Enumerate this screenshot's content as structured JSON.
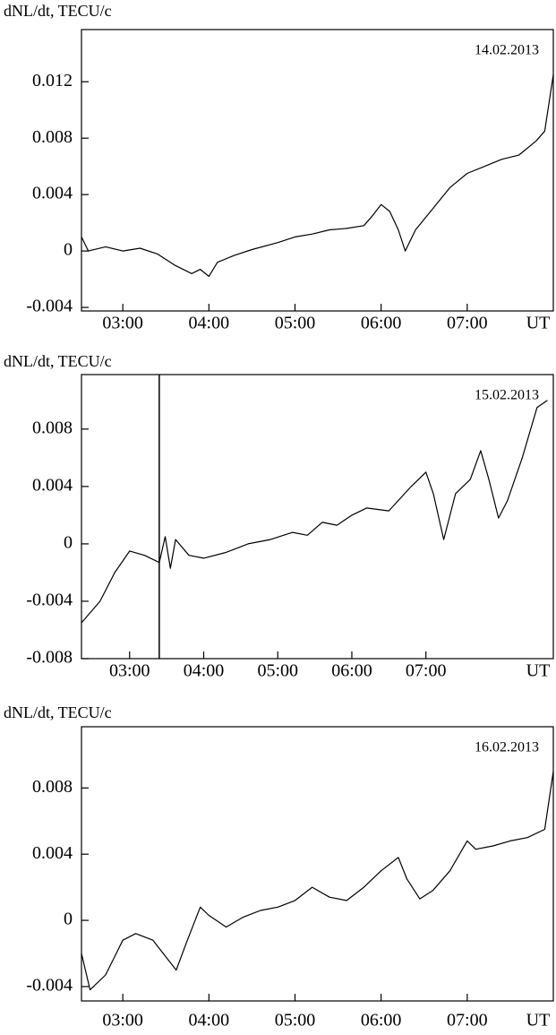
{
  "chart_data": [
    {
      "type": "line",
      "y_label": "dNL/dt, TECU/c",
      "x_label": "UT",
      "annotation": "14.02.2013",
      "color": "#000000",
      "xlim": [
        2.52,
        8.0
      ],
      "ylim": [
        -0.00425,
        0.0157
      ],
      "xticks": [
        {
          "value": 3,
          "label": "03:00"
        },
        {
          "value": 4,
          "label": "04:00"
        },
        {
          "value": 5,
          "label": "05:00"
        },
        {
          "value": 6,
          "label": "06:00"
        },
        {
          "value": 7,
          "label": "07:00"
        }
      ],
      "yticks": [
        -0.004,
        0,
        0.004,
        0.008,
        0.012
      ],
      "x": [
        2.52,
        2.6,
        2.8,
        3.0,
        3.2,
        3.4,
        3.6,
        3.8,
        3.9,
        4.0,
        4.1,
        4.3,
        4.5,
        4.8,
        5.0,
        5.2,
        5.4,
        5.6,
        5.8,
        5.9,
        6.0,
        6.1,
        6.2,
        6.28,
        6.4,
        6.6,
        6.8,
        7.0,
        7.2,
        7.4,
        7.6,
        7.8,
        7.9,
        8.0
      ],
      "values": [
        0.001,
        0.0,
        0.0003,
        0.0,
        0.0002,
        -0.0002,
        -0.001,
        -0.0016,
        -0.0013,
        -0.0018,
        -0.0008,
        -0.0003,
        0.0001,
        0.0006,
        0.001,
        0.0012,
        0.0015,
        0.0016,
        0.0018,
        0.0025,
        0.0033,
        0.0028,
        0.0015,
        0.0,
        0.0015,
        0.003,
        0.0045,
        0.0055,
        0.006,
        0.0065,
        0.0068,
        0.0078,
        0.0085,
        0.0125
      ]
    },
    {
      "type": "line",
      "y_label": "dNL/dt, TECU/c",
      "x_label": "UT",
      "annotation": "15.02.2013",
      "color": "#000000",
      "xlim": [
        2.35,
        8.72
      ],
      "ylim": [
        -0.008,
        0.0118
      ],
      "xticks": [
        {
          "value": 3,
          "label": "03:00"
        },
        {
          "value": 4,
          "label": "04:00"
        },
        {
          "value": 5,
          "label": "05:00"
        },
        {
          "value": 6,
          "label": "06:00"
        },
        {
          "value": 7,
          "label": "07:00"
        }
      ],
      "yticks": [
        -0.008,
        -0.004,
        0,
        0.004,
        0.008
      ],
      "vlines": [
        3.4
      ],
      "x": [
        2.35,
        2.6,
        2.8,
        3.0,
        3.2,
        3.4,
        3.48,
        3.55,
        3.62,
        3.8,
        4.0,
        4.3,
        4.6,
        4.9,
        5.2,
        5.4,
        5.6,
        5.8,
        6.0,
        6.2,
        6.5,
        6.8,
        7.0,
        7.1,
        7.24,
        7.4,
        7.6,
        7.74,
        7.85,
        7.98,
        8.1,
        8.3,
        8.5,
        8.64
      ],
      "values": [
        -0.0055,
        -0.004,
        -0.002,
        -0.0005,
        -0.0008,
        -0.0013,
        0.0005,
        -0.0017,
        0.0003,
        -0.0008,
        -0.001,
        -0.0006,
        0.0,
        0.0003,
        0.0008,
        0.0006,
        0.0015,
        0.0013,
        0.002,
        0.0025,
        0.0023,
        0.004,
        0.005,
        0.0035,
        0.0003,
        0.0035,
        0.0045,
        0.0065,
        0.0045,
        0.0018,
        0.003,
        0.006,
        0.0095,
        0.01
      ]
    },
    {
      "type": "line",
      "y_label": "dNL/dt, TECU/c",
      "x_label": "UT",
      "annotation": "16.02.2013",
      "color": "#000000",
      "xlim": [
        2.52,
        8.0
      ],
      "ylim": [
        -0.00487,
        0.0117
      ],
      "xticks": [
        {
          "value": 3,
          "label": "03:00"
        },
        {
          "value": 4,
          "label": "04:00"
        },
        {
          "value": 5,
          "label": "05:00"
        },
        {
          "value": 6,
          "label": "06:00"
        },
        {
          "value": 7,
          "label": "07:00"
        }
      ],
      "yticks": [
        -0.004,
        0,
        0.004,
        0.008
      ],
      "x": [
        2.52,
        2.62,
        2.8,
        3.0,
        3.15,
        3.35,
        3.5,
        3.62,
        3.75,
        3.9,
        4.0,
        4.2,
        4.4,
        4.6,
        4.8,
        5.0,
        5.2,
        5.4,
        5.6,
        5.8,
        6.0,
        6.2,
        6.3,
        6.45,
        6.6,
        6.8,
        7.0,
        7.1,
        7.3,
        7.5,
        7.7,
        7.9,
        8.0
      ],
      "values": [
        -0.002,
        -0.0042,
        -0.0033,
        -0.0012,
        -0.0008,
        -0.0012,
        -0.0022,
        -0.003,
        -0.0012,
        0.0008,
        0.0003,
        -0.0004,
        0.0002,
        0.0006,
        0.0008,
        0.0012,
        0.002,
        0.0014,
        0.0012,
        0.002,
        0.003,
        0.0038,
        0.0025,
        0.0013,
        0.0018,
        0.003,
        0.0048,
        0.0043,
        0.0045,
        0.0048,
        0.005,
        0.0055,
        0.009
      ]
    }
  ]
}
